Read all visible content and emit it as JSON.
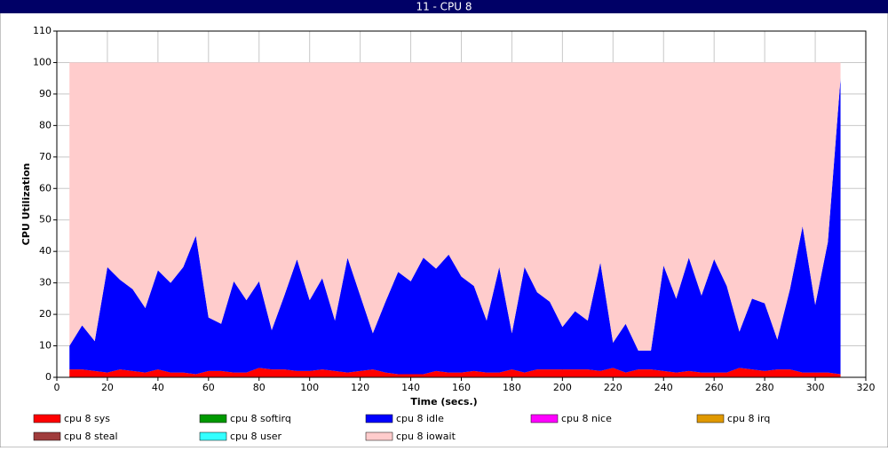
{
  "chart_data": {
    "type": "stacked-area",
    "title": "11 - CPU 8",
    "xlabel": "Time (secs.)",
    "ylabel": "CPU Utilization",
    "x": [
      5,
      10,
      15,
      20,
      25,
      30,
      35,
      40,
      45,
      50,
      55,
      60,
      65,
      70,
      75,
      80,
      85,
      90,
      95,
      100,
      105,
      110,
      115,
      120,
      125,
      130,
      135,
      140,
      145,
      150,
      155,
      160,
      165,
      170,
      175,
      180,
      185,
      190,
      195,
      200,
      205,
      210,
      215,
      220,
      225,
      230,
      235,
      240,
      245,
      250,
      255,
      260,
      265,
      270,
      275,
      280,
      285,
      290,
      295,
      300,
      305,
      310
    ],
    "series": [
      {
        "name": "cpu 8 sys",
        "color": "#ff0000",
        "values": [
          2.5,
          2.5,
          2,
          1.5,
          2.5,
          2,
          1.5,
          2.5,
          1.5,
          1.5,
          1,
          2,
          2,
          1.5,
          1.5,
          3,
          2.5,
          2.5,
          2,
          2,
          2.5,
          2,
          1.5,
          2,
          2.5,
          1.5,
          1,
          1,
          1,
          2,
          1.5,
          1.5,
          2,
          1.5,
          1.5,
          2.5,
          1.5,
          2.5,
          2.5,
          2.5,
          2.5,
          2.5,
          2,
          3,
          1.5,
          2.5,
          2.5,
          2,
          1.5,
          2,
          1.5,
          1.5,
          1.5,
          3,
          2.5,
          2,
          2.5,
          2.5,
          1.5,
          1.5,
          1.5,
          1
        ]
      },
      {
        "name": "cpu 8 softirq",
        "color": "#009900",
        "values": [
          0,
          0,
          0,
          0,
          0,
          0,
          0,
          0,
          0,
          0,
          0,
          0,
          0,
          0,
          0,
          0,
          0,
          0,
          0,
          0,
          0,
          0,
          0,
          0,
          0,
          0,
          0,
          0,
          0,
          0,
          0,
          0,
          0,
          0,
          0,
          0,
          0,
          0,
          0,
          0,
          0,
          0,
          0,
          0,
          0,
          0,
          0,
          0,
          0,
          0,
          0,
          0,
          0,
          0,
          0,
          0,
          0,
          0,
          0,
          0,
          0,
          0
        ]
      },
      {
        "name": "cpu 8 idle",
        "color": "#0000ff",
        "values": [
          7.5,
          14,
          9.5,
          33.5,
          28.5,
          26,
          20.5,
          31.5,
          28.5,
          33.5,
          44,
          17,
          15,
          29,
          23,
          27.5,
          12.5,
          23.5,
          35.5,
          22.5,
          29,
          16,
          36.5,
          24,
          11.5,
          22.5,
          32.5,
          29.5,
          37,
          32.5,
          37.5,
          30.5,
          27,
          16.5,
          33.5,
          11.5,
          33.5,
          24.5,
          21.5,
          13.5,
          18.5,
          15.5,
          34.5,
          8,
          15.5,
          6,
          6,
          33.5,
          23.5,
          36,
          24.5,
          36,
          27.5,
          11.5,
          22.5,
          21.5,
          9.5,
          25.5,
          46.5,
          21.5,
          41.5,
          94
        ]
      },
      {
        "name": "cpu 8 nice",
        "color": "#ff00ff",
        "values": [
          0,
          0,
          0,
          0,
          0,
          0,
          0,
          0,
          0,
          0,
          0,
          0,
          0,
          0,
          0,
          0,
          0,
          0,
          0,
          0,
          0,
          0,
          0,
          0,
          0,
          0,
          0,
          0,
          0,
          0,
          0,
          0,
          0,
          0,
          0,
          0,
          0,
          0,
          0,
          0,
          0,
          0,
          0,
          0,
          0,
          0,
          0,
          0,
          0,
          0,
          0,
          0,
          0,
          0,
          0,
          0,
          0,
          0,
          0,
          0,
          0,
          0
        ]
      },
      {
        "name": "cpu 8 irq",
        "color": "#e09900",
        "values": [
          0,
          0,
          0,
          0,
          0,
          0,
          0,
          0,
          0,
          0,
          0,
          0,
          0,
          0,
          0,
          0,
          0,
          0,
          0,
          0,
          0,
          0,
          0,
          0,
          0,
          0,
          0,
          0,
          0,
          0,
          0,
          0,
          0,
          0,
          0,
          0,
          0,
          0,
          0,
          0,
          0,
          0,
          0,
          0,
          0,
          0,
          0,
          0,
          0,
          0,
          0,
          0,
          0,
          0,
          0,
          0,
          0,
          0,
          0,
          0,
          0,
          0
        ]
      },
      {
        "name": "cpu 8 steal",
        "color": "#a03c3c",
        "values": [
          0,
          0,
          0,
          0,
          0,
          0,
          0,
          0,
          0,
          0,
          0,
          0,
          0,
          0,
          0,
          0,
          0,
          0,
          0,
          0,
          0,
          0,
          0,
          0,
          0,
          0,
          0,
          0,
          0,
          0,
          0,
          0,
          0,
          0,
          0,
          0,
          0,
          0,
          0,
          0,
          0,
          0,
          0,
          0,
          0,
          0,
          0,
          0,
          0,
          0,
          0,
          0,
          0,
          0,
          0,
          0,
          0,
          0,
          0,
          0,
          0,
          0
        ]
      },
      {
        "name": "cpu 8 user",
        "color": "#33ffff",
        "values": [
          0,
          0,
          0,
          0,
          0,
          0,
          0,
          0,
          0,
          0,
          0,
          0,
          0,
          0,
          0,
          0,
          0,
          0,
          0,
          0,
          0,
          0,
          0,
          0,
          0,
          0,
          0,
          0,
          0,
          0,
          0,
          0,
          0,
          0,
          0,
          0,
          0,
          0,
          0,
          0,
          0,
          0,
          0,
          0,
          0,
          0,
          0,
          0,
          0,
          0,
          0,
          0,
          0,
          0,
          0,
          0,
          0,
          0,
          0,
          0,
          0,
          0
        ]
      },
      {
        "name": "cpu 8 iowait",
        "color": "#ffcccc",
        "values": [
          90,
          83.5,
          88.5,
          65,
          69,
          72,
          78,
          66,
          70,
          65,
          55,
          81,
          83,
          69.5,
          75.5,
          69.5,
          85,
          74,
          62.5,
          75.5,
          68.5,
          82,
          62,
          74,
          86,
          76,
          66.5,
          69.5,
          62,
          65.5,
          61,
          68,
          71,
          82,
          65,
          86,
          65,
          73,
          76,
          84,
          79,
          82,
          63.5,
          89,
          83,
          91.5,
          91.5,
          64.5,
          75,
          62,
          74,
          62.5,
          71,
          85.5,
          75,
          76.5,
          88,
          72,
          52,
          77,
          57,
          5
        ]
      }
    ],
    "xlim": [
      0,
      320
    ],
    "xticks": [
      0,
      20,
      40,
      60,
      80,
      100,
      120,
      140,
      160,
      180,
      200,
      220,
      240,
      260,
      280,
      300,
      320
    ],
    "ylim": [
      0,
      110
    ],
    "yticks": [
      0,
      10,
      20,
      30,
      40,
      50,
      60,
      70,
      80,
      90,
      100,
      110
    ],
    "grid": true
  }
}
